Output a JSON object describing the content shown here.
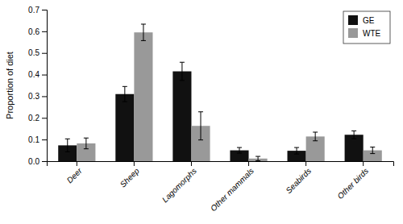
{
  "chart_data": {
    "type": "bar",
    "ylabel": "Proportion of diet",
    "categories": [
      "Deer",
      "Sheep",
      "Lagomorphs",
      "Other mammals",
      "Seabirds",
      "Other birds"
    ],
    "series": [
      {
        "name": "GE",
        "color": "#111111",
        "values": [
          0.073,
          0.31,
          0.415,
          0.05,
          0.048,
          0.122
        ],
        "errors": [
          0.03,
          0.035,
          0.042,
          0.013,
          0.015,
          0.018
        ]
      },
      {
        "name": "WTE",
        "color": "#999999",
        "values": [
          0.082,
          0.595,
          0.163,
          0.012,
          0.114,
          0.05
        ],
        "errors": [
          0.025,
          0.038,
          0.065,
          0.01,
          0.02,
          0.015
        ]
      }
    ],
    "ylim": [
      0,
      0.7
    ],
    "yticks": [
      {
        "value": 0,
        "label": "0.0"
      },
      0.1,
      0.2,
      0.3,
      0.4,
      0.5,
      0.6,
      0.7
    ],
    "grid": false,
    "legend": "top-right"
  }
}
